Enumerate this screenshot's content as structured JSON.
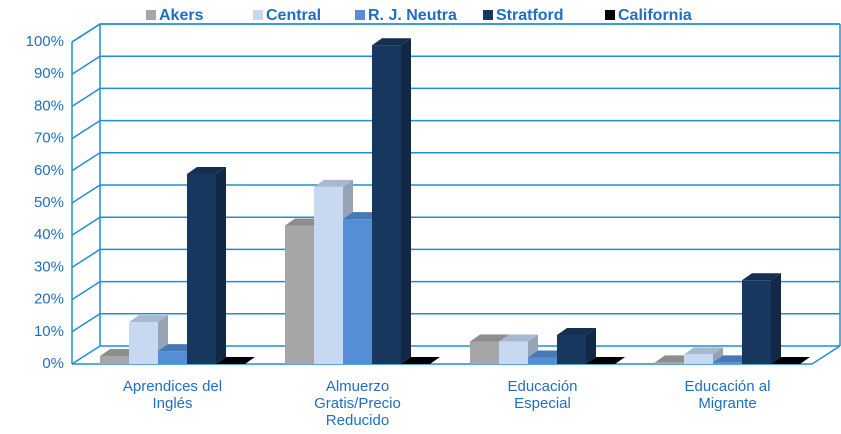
{
  "chart_data": {
    "type": "bar3d",
    "categories": [
      "Aprendices del Inglés",
      "Almuerzo Gratis/Precio Reducido",
      "Educación Especial",
      "Educación al Migrante"
    ],
    "series": [
      {
        "name": "Akers",
        "color": "#a6a6a6",
        "values": [
          2.5,
          43,
          7,
          0.5
        ]
      },
      {
        "name": "Central",
        "color": "#c6d9f1",
        "values": [
          13,
          55,
          7,
          3
        ]
      },
      {
        "name": "R. J. Neutra",
        "color": "#558ed5",
        "values": [
          4,
          45,
          2,
          0.5
        ]
      },
      {
        "name": "Stratford",
        "color": "#17375e",
        "values": [
          59,
          99,
          9,
          26
        ]
      },
      {
        "name": "California",
        "color": "#000000",
        "values": [
          0,
          0,
          0,
          0
        ]
      }
    ],
    "ylim": [
      0,
      100
    ],
    "yticks": [
      {
        "value": 0,
        "label": "0%"
      },
      {
        "value": 10,
        "label": "10%"
      },
      {
        "value": 20,
        "label": "20%"
      },
      {
        "value": 30,
        "label": "30%"
      },
      {
        "value": 40,
        "label": "40%"
      },
      {
        "value": 50,
        "label": "50%"
      },
      {
        "value": 60,
        "label": "60%"
      },
      {
        "value": 70,
        "label": "70%"
      },
      {
        "value": 80,
        "label": "80%"
      },
      {
        "value": 90,
        "label": "90%"
      },
      {
        "value": 100,
        "label": "100%"
      }
    ],
    "grid": true,
    "legend": "top"
  }
}
